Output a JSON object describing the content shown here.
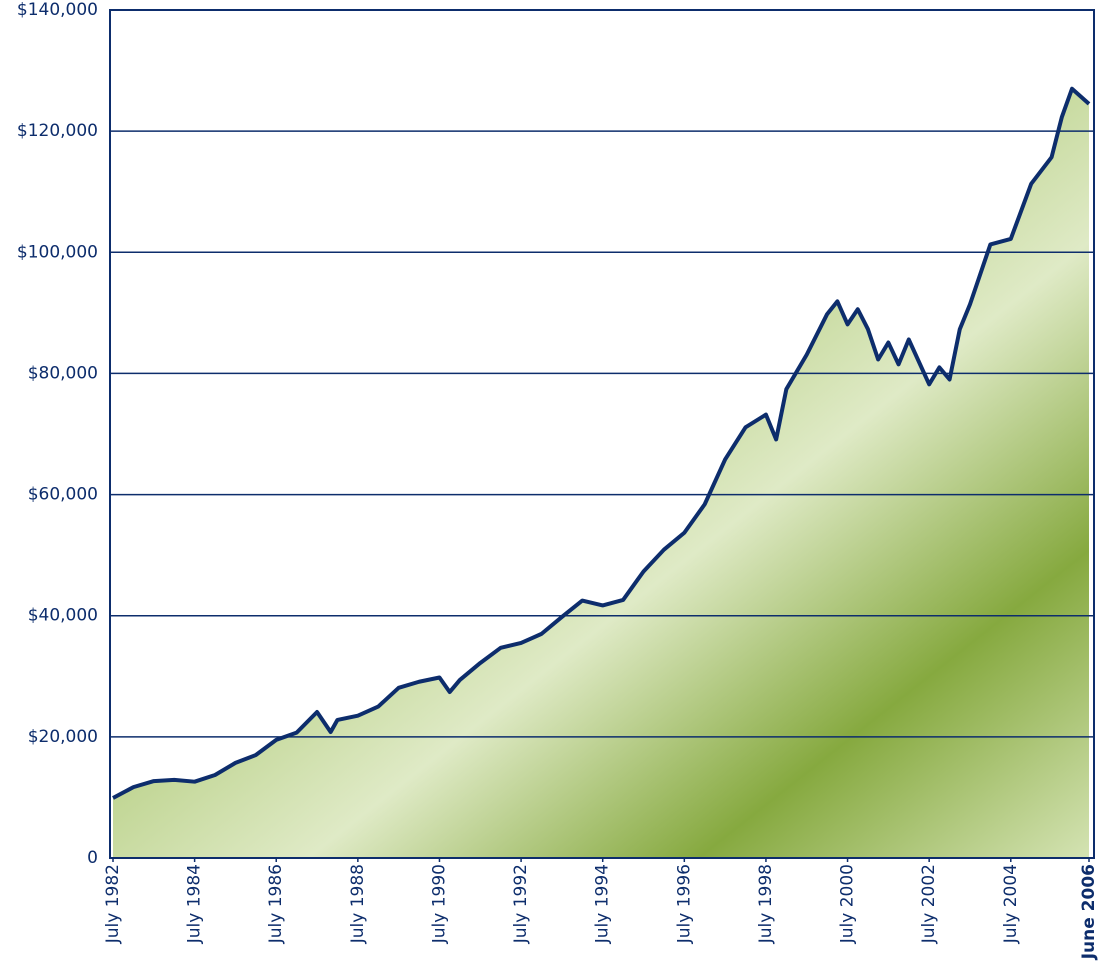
{
  "chart_data": {
    "type": "area-line",
    "x": [
      "1982-07",
      "1983-01",
      "1983-07",
      "1984-01",
      "1984-07",
      "1985-01",
      "1985-07",
      "1986-01",
      "1986-07",
      "1987-01",
      "1987-07",
      "1987-11",
      "1988-01",
      "1988-07",
      "1989-01",
      "1989-07",
      "1990-01",
      "1990-07",
      "1990-10",
      "1991-01",
      "1991-07",
      "1992-01",
      "1992-07",
      "1993-01",
      "1993-07",
      "1994-01",
      "1994-07",
      "1995-01",
      "1995-07",
      "1996-01",
      "1996-07",
      "1997-01",
      "1997-07",
      "1998-01",
      "1998-07",
      "1998-10",
      "1999-01",
      "1999-07",
      "2000-01",
      "2000-04",
      "2000-07",
      "2000-10",
      "2001-01",
      "2001-04",
      "2001-07",
      "2001-10",
      "2002-01",
      "2002-07",
      "2002-10",
      "2003-01",
      "2003-04",
      "2003-07",
      "2004-01",
      "2004-07",
      "2005-01",
      "2005-07",
      "2005-10",
      "2006-01",
      "2006-06"
    ],
    "values": [
      9900,
      11700,
      12700,
      12900,
      12600,
      13700,
      15700,
      17000,
      19500,
      20700,
      24100,
      20800,
      22800,
      23500,
      25000,
      28100,
      29100,
      29800,
      27400,
      29400,
      32200,
      34700,
      35500,
      37000,
      39800,
      42500,
      41700,
      42600,
      47300,
      50900,
      53700,
      58400,
      65800,
      71100,
      73200,
      69100,
      77400,
      83100,
      89800,
      91900,
      88100,
      90600,
      87300,
      82300,
      85100,
      81500,
      85600,
      78200,
      81000,
      79000,
      87300,
      91400,
      101300,
      102200,
      111300,
      115700,
      122300,
      127000,
      124500
    ],
    "color": "#0d2d6c",
    "fill_color": "#8fb04a",
    "ylim": [
      0,
      140000
    ],
    "yticks": [
      0,
      {
        "value": 20000,
        "label": "$20,000"
      },
      {
        "value": 40000,
        "label": "$40,000"
      },
      {
        "value": 60000,
        "label": "$60,000"
      },
      {
        "value": 80000,
        "label": "$80,000"
      },
      {
        "value": 100000,
        "label": "$100,000"
      },
      {
        "value": 120000,
        "label": "$120,000"
      },
      {
        "value": 140000,
        "label": "$140,000"
      }
    ],
    "xlim": [
      "1982-07",
      "2006-06"
    ],
    "xticks": [
      {
        "value": "1982-07",
        "label": "July 1982"
      },
      {
        "value": "1984-07",
        "label": "July 1984"
      },
      {
        "value": "1986-07",
        "label": "July 1986"
      },
      {
        "value": "1988-07",
        "label": "July 1988"
      },
      {
        "value": "1990-07",
        "label": "July 1990"
      },
      {
        "value": "1992-07",
        "label": "July 1992"
      },
      {
        "value": "1994-07",
        "label": "July 1994"
      },
      {
        "value": "1996-07",
        "label": "July 1996"
      },
      {
        "value": "1998-07",
        "label": "July 1998"
      },
      {
        "value": "2000-07",
        "label": "July 2000"
      },
      {
        "value": "2002-07",
        "label": "July 2002"
      },
      {
        "value": "2004-07",
        "label": "July 2004"
      },
      {
        "value": "2006-06",
        "label": "June 2006"
      }
    ],
    "grid": true
  }
}
